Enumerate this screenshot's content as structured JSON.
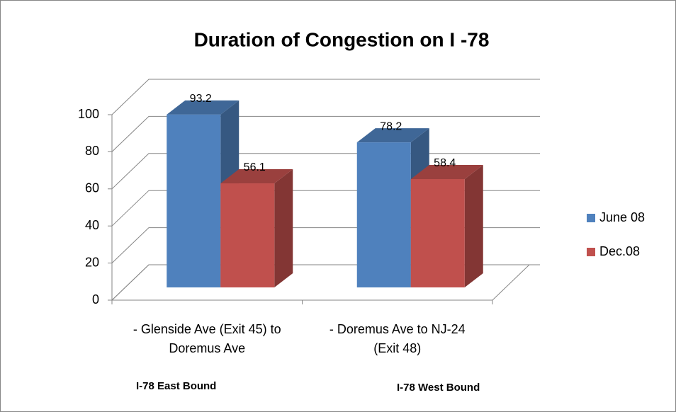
{
  "chart_data": {
    "type": "bar3d",
    "title": "Duration of Congestion on I -78",
    "categories": [
      "- Glenside Ave (Exit 45) to Doremus Ave",
      "- Doremus Ave to NJ-24 (Exit 48)"
    ],
    "series": [
      {
        "name": "June 08",
        "color": "#4f81bd",
        "values": [
          93.2,
          78.2
        ]
      },
      {
        "name": "Dec.08",
        "color": "#c0504d",
        "values": [
          56.1,
          58.4
        ]
      }
    ],
    "ylim": [
      0,
      100
    ],
    "yticks": [
      0,
      20,
      40,
      60,
      80,
      100
    ],
    "grid": true,
    "legend": "right",
    "annotations": [
      "I-78 East Bound",
      "I-78 West Bound"
    ]
  }
}
